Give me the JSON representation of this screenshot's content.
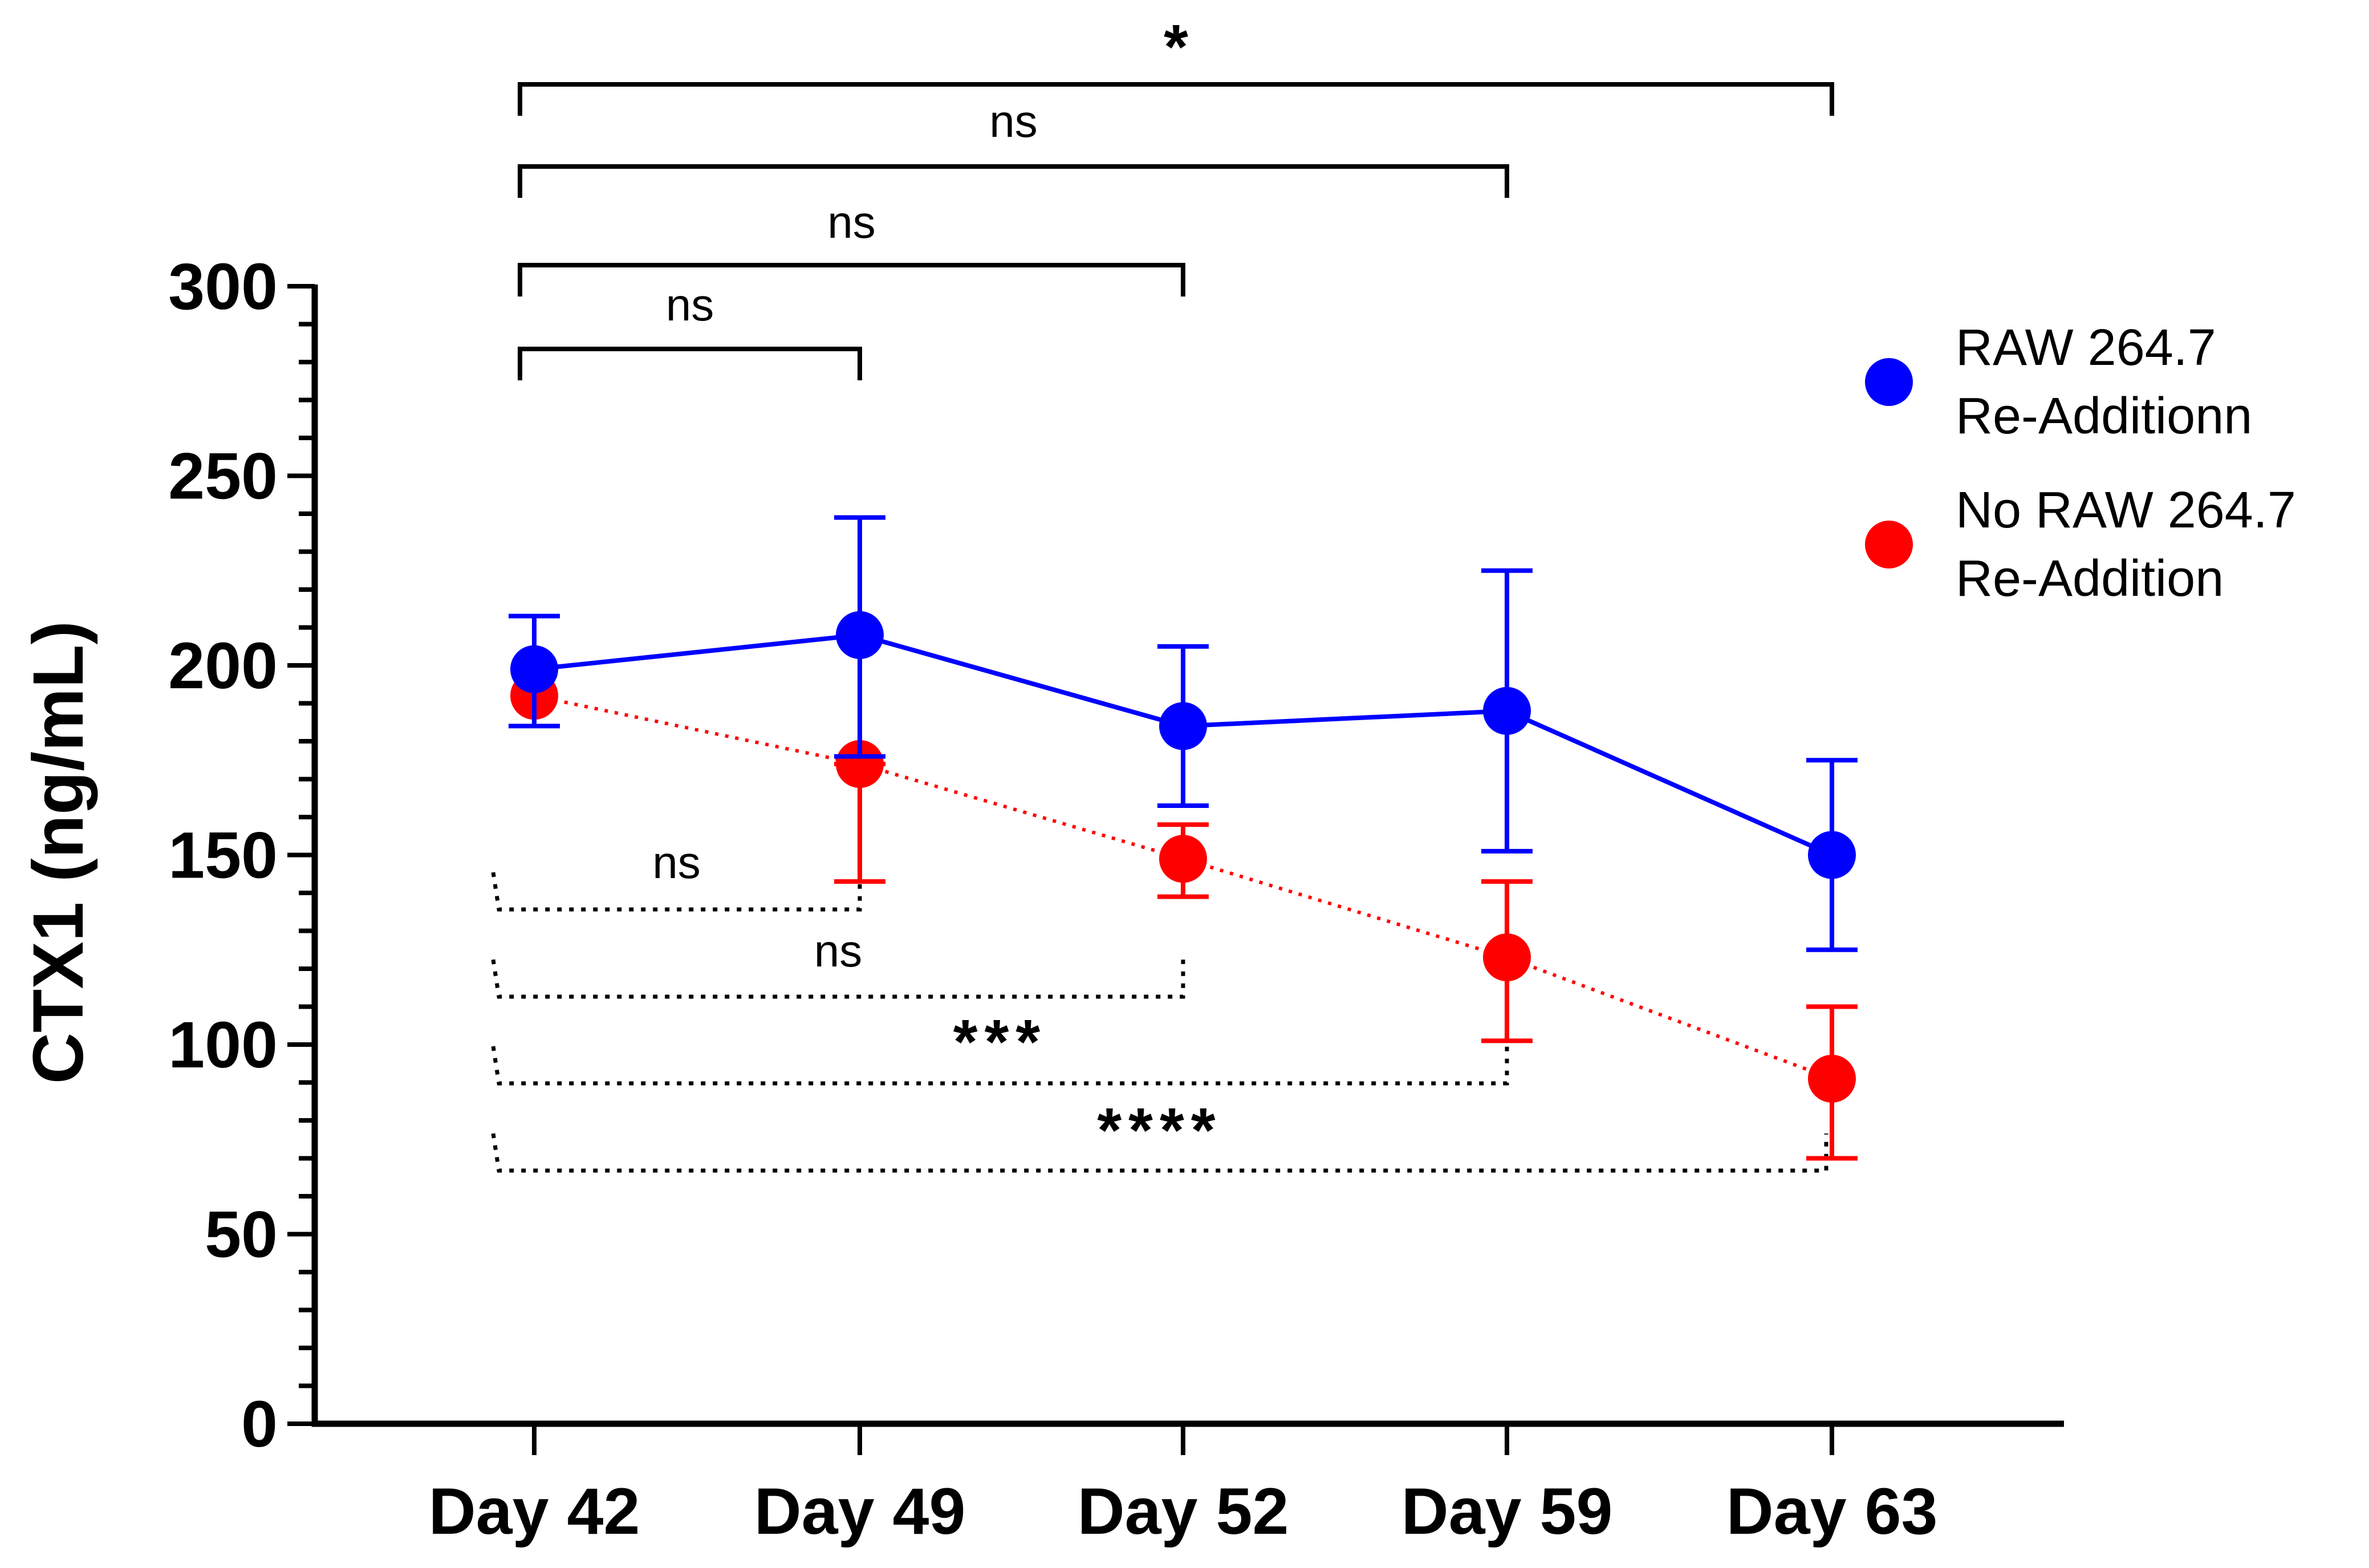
{
  "chart_data": {
    "type": "line",
    "title": "",
    "xlabel": "",
    "ylabel": "CTX1  (ng/mL)",
    "ylim": [
      0,
      300
    ],
    "y_major_ticks": [
      0,
      50,
      100,
      150,
      200,
      250,
      300
    ],
    "y_tick_labels": [
      "0",
      "50",
      "100",
      "150",
      "200",
      "250",
      "300"
    ],
    "categories": [
      "Day 42",
      "Day 49",
      "Day 52",
      "Day 59",
      "Day 63"
    ],
    "series": [
      {
        "name": "RAW 264.7 Re-Additionn",
        "legend_lines": [
          "RAW 264.7",
          "Re-Additionn"
        ],
        "color": "#0000ff",
        "line_style": "solid",
        "values": [
          199,
          208,
          184,
          188,
          150
        ],
        "error_upper": [
          213,
          239,
          205,
          225,
          175
        ],
        "error_lower": [
          184,
          176,
          163,
          151,
          125
        ]
      },
      {
        "name": "No RAW 264.7 Re-Addition",
        "legend_lines": [
          "No RAW 264.7",
          "Re-Addition"
        ],
        "color": "#ff0000",
        "line_style": "dotted",
        "values": [
          192,
          174,
          149,
          123,
          91
        ],
        "error_upper": [
          192,
          174,
          158,
          143,
          110
        ],
        "error_lower": [
          192,
          143,
          139,
          101,
          70
        ]
      }
    ],
    "comparisons_top": [
      {
        "from": "Day 42",
        "to": "Day 49",
        "label": "ns"
      },
      {
        "from": "Day 42",
        "to": "Day 52",
        "label": "ns"
      },
      {
        "from": "Day 42",
        "to": "Day 59",
        "label": "ns"
      },
      {
        "from": "Day 42",
        "to": "Day 63",
        "label": "*"
      }
    ],
    "comparisons_bottom": [
      {
        "from": "Day 42",
        "to": "Day 49",
        "label": "ns"
      },
      {
        "from": "Day 42",
        "to": "Day 52",
        "label": "ns"
      },
      {
        "from": "Day 42",
        "to": "Day 59",
        "label": "***"
      },
      {
        "from": "Day 42",
        "to": "Day 63",
        "label": "****"
      }
    ],
    "legend_position": "top-right"
  }
}
